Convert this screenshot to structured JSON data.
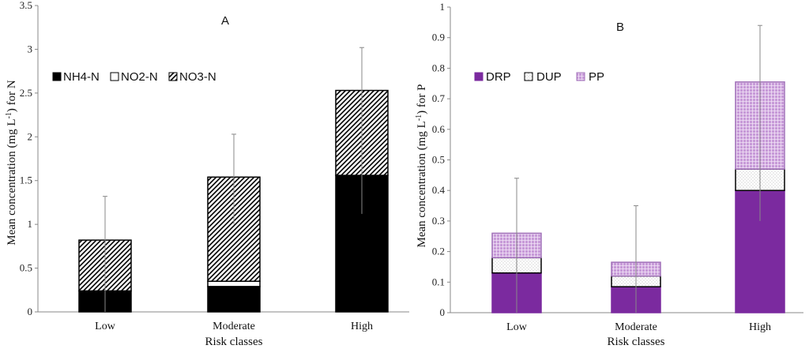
{
  "colors": {
    "black": "#000000",
    "white": "#ffffff",
    "purple": "#7b2a9f",
    "pink": "#c79ad8",
    "axis": "#888888",
    "error": "#888888"
  },
  "chart_data": [
    {
      "type": "bar",
      "stacked": true,
      "panel_label": "A",
      "categories": [
        "Low",
        "Moderate",
        "High"
      ],
      "series": [
        {
          "name": "NH4-N",
          "values": [
            0.24,
            0.29,
            1.56
          ],
          "fill": "solid-black"
        },
        {
          "name": "NO2-N",
          "values": [
            0.0,
            0.06,
            0.0
          ],
          "fill": "white"
        },
        {
          "name": "NO3-N",
          "values": [
            0.58,
            1.19,
            0.97
          ],
          "fill": "diagonal-hatch"
        }
      ],
      "totals": [
        0.82,
        1.54,
        2.53
      ],
      "error_bars": [
        {
          "center": 0.82,
          "upper": 1.32,
          "lower": 0.0
        },
        {
          "center": 1.54,
          "upper": 2.03,
          "lower": 1.0
        },
        {
          "center": 2.53,
          "upper": 3.02,
          "lower": 1.12
        }
      ],
      "xlabel": "Risk classes",
      "ylabel_main": "Mean concentration (mg L",
      "ylabel_sup": "-1",
      "ylabel_end": ") for N",
      "ylim": [
        0,
        3.5
      ],
      "yticks": [
        "0",
        "0.5",
        "1",
        "1.5",
        "2",
        "2.5",
        "3",
        "3.5"
      ],
      "ytick_values": [
        0,
        0.5,
        1,
        1.5,
        2,
        2.5,
        3,
        3.5
      ],
      "legend_position": "upper-left"
    },
    {
      "type": "bar",
      "stacked": true,
      "panel_label": "B",
      "categories": [
        "Low",
        "Moderate",
        "High"
      ],
      "series": [
        {
          "name": "DRP",
          "values": [
            0.13,
            0.085,
            0.4
          ],
          "fill": "solid-purple"
        },
        {
          "name": "DUP",
          "values": [
            0.05,
            0.035,
            0.07
          ],
          "fill": "dotted"
        },
        {
          "name": "PP",
          "values": [
            0.08,
            0.045,
            0.285
          ],
          "fill": "pink-grid"
        }
      ],
      "totals": [
        0.26,
        0.165,
        0.755
      ],
      "error_bars": [
        {
          "center": 0.26,
          "upper": 0.44,
          "lower": 0.0
        },
        {
          "center": 0.165,
          "upper": 0.35,
          "lower": 0.0
        },
        {
          "center": 0.755,
          "upper": 0.94,
          "lower": 0.3
        }
      ],
      "xlabel": "Risk classes",
      "ylabel_main": "Mean concentration (mg L",
      "ylabel_sup": "-1",
      "ylabel_end": ") for P",
      "ylim": [
        0,
        1
      ],
      "yticks": [
        "0",
        "0.1",
        "0.2",
        "0.3",
        "0.4",
        "0.5",
        "0.6",
        "0.7",
        "0.8",
        "0.9",
        "1"
      ],
      "ytick_values": [
        0,
        0.1,
        0.2,
        0.3,
        0.4,
        0.5,
        0.6,
        0.7,
        0.8,
        0.9,
        1
      ],
      "legend_position": "upper-left"
    }
  ]
}
